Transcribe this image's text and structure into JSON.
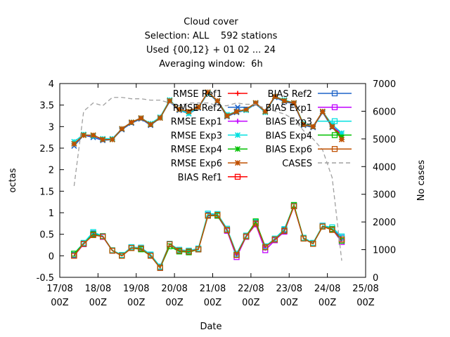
{
  "chart_data": {
    "type": "line",
    "title": "Cloud cover",
    "subtitle": [
      "Selection: ALL    592 stations",
      "Used {00,12} + 01 02 ... 24",
      "Averaging window:  6h"
    ],
    "xlabel": "Date",
    "ylabel": "octas",
    "y2label": "No cases",
    "x": [
      9,
      15,
      21,
      27,
      33,
      39,
      45,
      51,
      57,
      63,
      69,
      75,
      81,
      87,
      93,
      99,
      105,
      111,
      117,
      123,
      129,
      135,
      141,
      147,
      153,
      159,
      165,
      171,
      177
    ],
    "xlim": [
      0,
      192
    ],
    "xticks": [
      {
        "value": 0,
        "label": "17/08\n00Z"
      },
      {
        "value": 24,
        "label": "18/08\n00Z"
      },
      {
        "value": 48,
        "label": "19/08\n00Z"
      },
      {
        "value": 72,
        "label": "20/08\n00Z"
      },
      {
        "value": 96,
        "label": "21/08\n00Z"
      },
      {
        "value": 120,
        "label": "22/08\n00Z"
      },
      {
        "value": 144,
        "label": "23/08\n00Z"
      },
      {
        "value": 168,
        "label": "24/08\n00Z"
      },
      {
        "value": 192,
        "label": "25/08\n00Z"
      }
    ],
    "ylim": [
      -0.5,
      4
    ],
    "yticks": [
      -0.5,
      0,
      0.5,
      1,
      1.5,
      2,
      2.5,
      3,
      3.5,
      4
    ],
    "y2lim": [
      0,
      7000
    ],
    "y2ticks": [
      0,
      1000,
      2000,
      3000,
      4000,
      5000,
      6000,
      7000
    ],
    "grid": false,
    "legend": "top-right",
    "series": [
      {
        "name": "RMSE Ref1",
        "color": "#ff0000",
        "marker": "plus",
        "values": [
          2.6,
          2.8,
          2.8,
          2.7,
          2.7,
          2.95,
          3.1,
          3.2,
          3.05,
          3.2,
          3.6,
          3.4,
          3.35,
          3.45,
          3.8,
          3.6,
          3.25,
          3.35,
          3.4,
          3.55,
          3.35,
          3.7,
          3.6,
          3.55,
          3.05,
          3.0,
          3.35,
          3.0,
          2.8
        ]
      },
      {
        "name": "RMSE Ref2",
        "color": "#1e64c8",
        "marker": "cross",
        "values": [
          2.55,
          2.8,
          2.75,
          2.68,
          2.7,
          2.93,
          3.08,
          3.18,
          3.03,
          3.2,
          3.58,
          3.38,
          3.3,
          3.43,
          3.78,
          3.58,
          3.23,
          3.33,
          3.38,
          3.53,
          3.33,
          3.68,
          3.58,
          3.53,
          3.03,
          2.98,
          3.33,
          2.98,
          2.75
        ]
      },
      {
        "name": "RMSE Exp1",
        "color": "#c000ff",
        "marker": "plus",
        "values": [
          2.6,
          2.8,
          2.78,
          2.7,
          2.72,
          2.95,
          3.1,
          3.2,
          3.05,
          3.22,
          3.6,
          3.4,
          3.33,
          3.45,
          3.8,
          3.6,
          3.25,
          3.35,
          3.4,
          3.55,
          3.35,
          3.7,
          3.6,
          3.55,
          3.05,
          3.0,
          3.35,
          3.0,
          2.85
        ]
      },
      {
        "name": "RMSE Exp3",
        "color": "#00e0e0",
        "marker": "star",
        "values": [
          2.65,
          2.82,
          2.78,
          2.72,
          2.72,
          2.95,
          3.1,
          3.2,
          3.07,
          3.22,
          3.62,
          3.4,
          3.3,
          3.45,
          3.78,
          3.6,
          3.28,
          3.35,
          3.38,
          3.55,
          3.33,
          3.7,
          3.62,
          3.55,
          3.07,
          3.0,
          3.35,
          3.05,
          2.85
        ]
      },
      {
        "name": "RMSE Exp4",
        "color": "#00c000",
        "marker": "star",
        "values": [
          2.6,
          2.8,
          2.8,
          2.7,
          2.7,
          2.95,
          3.1,
          3.2,
          3.05,
          3.2,
          3.6,
          3.4,
          3.35,
          3.45,
          3.8,
          3.6,
          3.25,
          3.35,
          3.4,
          3.55,
          3.35,
          3.7,
          3.6,
          3.55,
          3.05,
          3.0,
          3.35,
          3.0,
          2.75
        ]
      },
      {
        "name": "RMSE Exp6",
        "color": "#c05000",
        "marker": "star",
        "values": [
          2.6,
          2.8,
          2.8,
          2.7,
          2.7,
          2.95,
          3.1,
          3.2,
          3.05,
          3.2,
          3.6,
          3.4,
          3.35,
          3.45,
          3.8,
          3.6,
          3.25,
          3.35,
          3.4,
          3.55,
          3.35,
          3.7,
          3.6,
          3.55,
          3.05,
          3.0,
          3.35,
          3.0,
          2.7
        ]
      },
      {
        "name": "BIAS Ref1",
        "color": "#ff0000",
        "marker": "square",
        "values": [
          0,
          0.28,
          0.5,
          0.45,
          0.12,
          0,
          0.18,
          0.17,
          0,
          -0.28,
          0.27,
          0.12,
          0.1,
          0.15,
          0.93,
          0.95,
          0.6,
          0.02,
          0.45,
          0.75,
          0.2,
          0.38,
          0.58,
          1.15,
          0.4,
          0.28,
          0.68,
          0.62,
          0.38
        ]
      },
      {
        "name": "BIAS Ref2",
        "color": "#1e64c8",
        "marker": "square",
        "values": [
          0.02,
          0.28,
          0.52,
          0.45,
          0.12,
          0,
          0.2,
          0.17,
          0.02,
          -0.26,
          0.27,
          0.13,
          0.1,
          0.15,
          0.95,
          0.95,
          0.6,
          0.02,
          0.45,
          0.77,
          0.2,
          0.38,
          0.6,
          1.15,
          0.4,
          0.28,
          0.68,
          0.62,
          0.42
        ]
      },
      {
        "name": "BIAS Exp1",
        "color": "#c000ff",
        "marker": "square",
        "values": [
          0,
          0.27,
          0.5,
          0.44,
          0.12,
          0,
          0.18,
          0.17,
          0,
          -0.28,
          0.27,
          0.12,
          0.1,
          0.15,
          0.93,
          0.93,
          0.58,
          -0.03,
          0.44,
          0.73,
          0.13,
          0.36,
          0.56,
          1.15,
          0.4,
          0.28,
          0.7,
          0.62,
          0.32
        ]
      },
      {
        "name": "BIAS Exp3",
        "color": "#00e0e0",
        "marker": "square",
        "values": [
          0.05,
          0.3,
          0.55,
          0.46,
          0.13,
          0.02,
          0.2,
          0.19,
          0.03,
          -0.25,
          0.28,
          0.14,
          0.12,
          0.17,
          0.98,
          0.97,
          0.63,
          0.05,
          0.47,
          0.78,
          0.22,
          0.4,
          0.62,
          1.17,
          0.42,
          0.3,
          0.7,
          0.66,
          0.45
        ]
      },
      {
        "name": "BIAS Exp4",
        "color": "#00c000",
        "marker": "square",
        "values": [
          0.05,
          0.28,
          0.5,
          0.45,
          0.12,
          0,
          0.18,
          0.15,
          0,
          -0.28,
          0.22,
          0.1,
          0.08,
          0.15,
          0.93,
          0.93,
          0.6,
          0.02,
          0.45,
          0.8,
          0.2,
          0.38,
          0.58,
          1.18,
          0.4,
          0.28,
          0.68,
          0.62,
          0.35
        ]
      },
      {
        "name": "BIAS Exp6",
        "color": "#c05000",
        "marker": "square",
        "values": [
          0,
          0.28,
          0.48,
          0.45,
          0.12,
          0,
          0.18,
          0.17,
          0,
          -0.28,
          0.27,
          0.12,
          0.1,
          0.15,
          0.93,
          0.95,
          0.6,
          0.02,
          0.45,
          0.75,
          0.2,
          0.38,
          0.58,
          1.15,
          0.4,
          0.28,
          0.68,
          0.6,
          0.38
        ]
      },
      {
        "name": "CASES",
        "color": "#a0a0a0",
        "marker": "none",
        "dash": true,
        "axis": "y2",
        "values": [
          3300,
          6000,
          6300,
          6200,
          6500,
          6500,
          6450,
          6450,
          6400,
          6400,
          6300,
          6200,
          6300,
          6300,
          6300,
          6200,
          6200,
          6300,
          6250,
          6250,
          6100,
          6000,
          5900,
          5700,
          5300,
          5000,
          4600,
          3600,
          600
        ]
      }
    ]
  }
}
